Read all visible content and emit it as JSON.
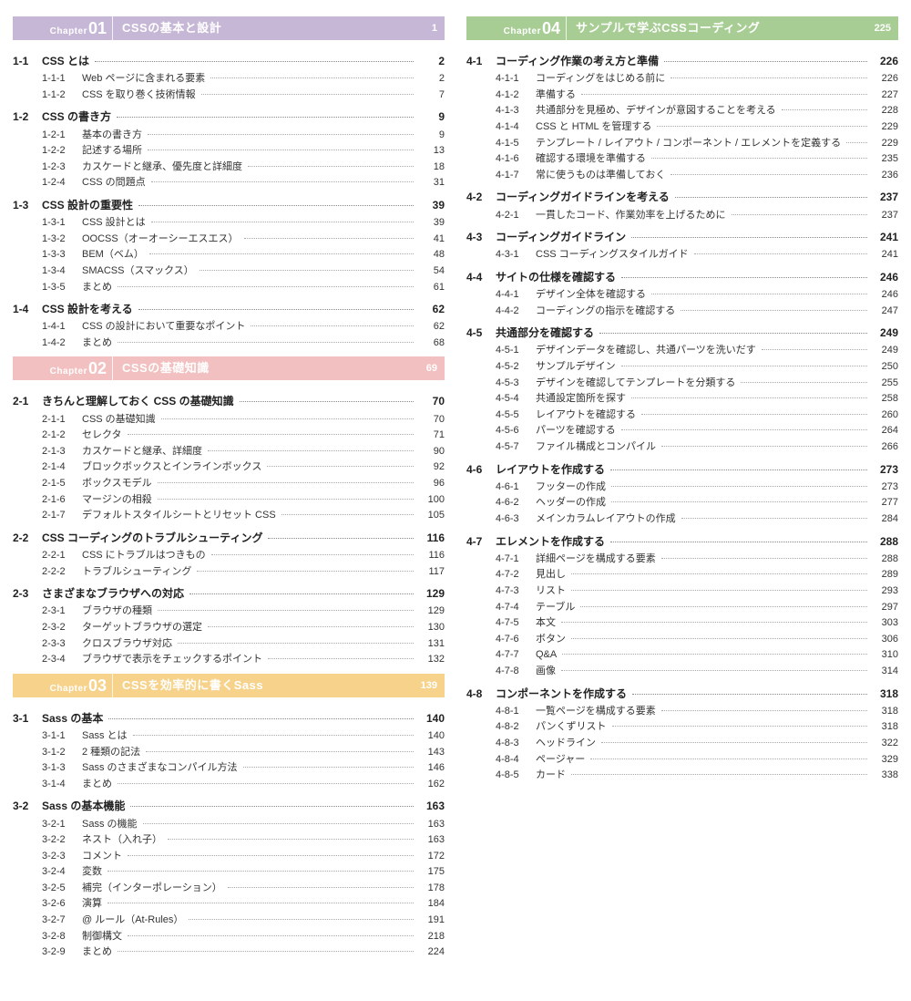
{
  "chapterLabel": "Chapter",
  "chapters": [
    {
      "num": "01",
      "title": "CSSの基本と設計",
      "page": 1,
      "color": "#c6b7d6",
      "sections": [
        {
          "num": "1-1",
          "title": "CSS とは",
          "page": 2,
          "subs": [
            {
              "num": "1-1-1",
              "title": "Web ページに含まれる要素",
              "page": 2
            },
            {
              "num": "1-1-2",
              "title": "CSS を取り巻く技術情報",
              "page": 7
            }
          ]
        },
        {
          "num": "1-2",
          "title": "CSS の書き方",
          "page": 9,
          "subs": [
            {
              "num": "1-2-1",
              "title": "基本の書き方",
              "page": 9
            },
            {
              "num": "1-2-2",
              "title": "記述する場所",
              "page": 13
            },
            {
              "num": "1-2-3",
              "title": "カスケードと継承、優先度と詳細度",
              "page": 18
            },
            {
              "num": "1-2-4",
              "title": "CSS の問題点",
              "page": 31
            }
          ]
        },
        {
          "num": "1-3",
          "title": "CSS 設計の重要性",
          "page": 39,
          "subs": [
            {
              "num": "1-3-1",
              "title": "CSS 設計とは",
              "page": 39
            },
            {
              "num": "1-3-2",
              "title": "OOCSS（オーオーシーエスエス）",
              "page": 41
            },
            {
              "num": "1-3-3",
              "title": "BEM（ベム）",
              "page": 48
            },
            {
              "num": "1-3-4",
              "title": "SMACSS（スマックス）",
              "page": 54
            },
            {
              "num": "1-3-5",
              "title": "まとめ",
              "page": 61
            }
          ]
        },
        {
          "num": "1-4",
          "title": "CSS 設計を考える",
          "page": 62,
          "subs": [
            {
              "num": "1-4-1",
              "title": "CSS の設計において重要なポイント",
              "page": 62
            },
            {
              "num": "1-4-2",
              "title": "まとめ",
              "page": 68
            }
          ]
        }
      ]
    },
    {
      "num": "02",
      "title": "CSSの基礎知識",
      "page": 69,
      "color": "#f2c0c0",
      "sections": [
        {
          "num": "2-1",
          "title": "きちんと理解しておく CSS の基礎知識",
          "page": 70,
          "subs": [
            {
              "num": "2-1-1",
              "title": "CSS の基礎知識",
              "page": 70
            },
            {
              "num": "2-1-2",
              "title": "セレクタ",
              "page": 71
            },
            {
              "num": "2-1-3",
              "title": "カスケードと継承、詳細度",
              "page": 90
            },
            {
              "num": "2-1-4",
              "title": "ブロックボックスとインラインボックス",
              "page": 92
            },
            {
              "num": "2-1-5",
              "title": "ボックスモデル",
              "page": 96
            },
            {
              "num": "2-1-6",
              "title": "マージンの相殺",
              "page": 100
            },
            {
              "num": "2-1-7",
              "title": "デフォルトスタイルシートとリセット CSS",
              "page": 105
            }
          ]
        },
        {
          "num": "2-2",
          "title": "CSS コーディングのトラブルシューティング",
          "page": 116,
          "subs": [
            {
              "num": "2-2-1",
              "title": "CSS にトラブルはつきもの",
              "page": 116
            },
            {
              "num": "2-2-2",
              "title": "トラブルシューティング",
              "page": 117
            }
          ]
        },
        {
          "num": "2-3",
          "title": "さまざまなブラウザへの対応",
          "page": 129,
          "subs": [
            {
              "num": "2-3-1",
              "title": "ブラウザの種類",
              "page": 129
            },
            {
              "num": "2-3-2",
              "title": "ターゲットブラウザの選定",
              "page": 130
            },
            {
              "num": "2-3-3",
              "title": "クロスブラウザ対応",
              "page": 131
            },
            {
              "num": "2-3-4",
              "title": "ブラウザで表示をチェックするポイント",
              "page": 132
            }
          ]
        }
      ]
    },
    {
      "num": "03",
      "title": "CSSを効率的に書くSass",
      "page": 139,
      "color": "#f6d28b",
      "sections": [
        {
          "num": "3-1",
          "title": "Sass の基本",
          "page": 140,
          "subs": [
            {
              "num": "3-1-1",
              "title": "Sass とは",
              "page": 140
            },
            {
              "num": "3-1-2",
              "title": "2 種類の記法",
              "page": 143
            },
            {
              "num": "3-1-3",
              "title": "Sass のさまざまなコンパイル方法",
              "page": 146
            },
            {
              "num": "3-1-4",
              "title": "まとめ",
              "page": 162
            }
          ]
        },
        {
          "num": "3-2",
          "title": "Sass の基本機能",
          "page": 163,
          "subs": [
            {
              "num": "3-2-1",
              "title": "Sass の機能",
              "page": 163
            },
            {
              "num": "3-2-2",
              "title": "ネスト（入れ子）",
              "page": 163
            },
            {
              "num": "3-2-3",
              "title": "コメント",
              "page": 172
            },
            {
              "num": "3-2-4",
              "title": "変数",
              "page": 175
            },
            {
              "num": "3-2-5",
              "title": "補完（インターポレーション）",
              "page": 178
            },
            {
              "num": "3-2-6",
              "title": "演算",
              "page": 184
            },
            {
              "num": "3-2-7",
              "title": "@ ルール（At-Rules）",
              "page": 191
            },
            {
              "num": "3-2-8",
              "title": "制御構文",
              "page": 218
            },
            {
              "num": "3-2-9",
              "title": "まとめ",
              "page": 224
            }
          ]
        }
      ]
    },
    {
      "num": "04",
      "title": "サンプルで学ぶCSSコーディング",
      "page": 225,
      "color": "#a7cd94",
      "sections": [
        {
          "num": "4-1",
          "title": "コーディング作業の考え方と準備",
          "page": 226,
          "subs": [
            {
              "num": "4-1-1",
              "title": "コーディングをはじめる前に",
              "page": 226
            },
            {
              "num": "4-1-2",
              "title": "準備する",
              "page": 227
            },
            {
              "num": "4-1-3",
              "title": "共通部分を見極め、デザインが意図することを考える",
              "page": 228
            },
            {
              "num": "4-1-4",
              "title": "CSS と HTML を管理する",
              "page": 229
            },
            {
              "num": "4-1-5",
              "title": "テンプレート / レイアウト / コンポーネント / エレメントを定義する",
              "page": 229
            },
            {
              "num": "4-1-6",
              "title": "確認する環境を準備する",
              "page": 235
            },
            {
              "num": "4-1-7",
              "title": "常に使うものは準備しておく",
              "page": 236
            }
          ]
        },
        {
          "num": "4-2",
          "title": "コーディングガイドラインを考える",
          "page": 237,
          "subs": [
            {
              "num": "4-2-1",
              "title": "一貫したコード、作業効率を上げるために",
              "page": 237
            }
          ]
        },
        {
          "num": "4-3",
          "title": "コーディングガイドライン",
          "page": 241,
          "subs": [
            {
              "num": "4-3-1",
              "title": "CSS コーディングスタイルガイド",
              "page": 241
            }
          ]
        },
        {
          "num": "4-4",
          "title": "サイトの仕様を確認する",
          "page": 246,
          "subs": [
            {
              "num": "4-4-1",
              "title": "デザイン全体を確認する",
              "page": 246
            },
            {
              "num": "4-4-2",
              "title": "コーディングの指示を確認する",
              "page": 247
            }
          ]
        },
        {
          "num": "4-5",
          "title": "共通部分を確認する",
          "page": 249,
          "subs": [
            {
              "num": "4-5-1",
              "title": "デザインデータを確認し、共通パーツを洗いだす",
              "page": 249
            },
            {
              "num": "4-5-2",
              "title": "サンプルデザイン",
              "page": 250
            },
            {
              "num": "4-5-3",
              "title": "デザインを確認してテンプレートを分類する",
              "page": 255
            },
            {
              "num": "4-5-4",
              "title": "共通設定箇所を探す",
              "page": 258
            },
            {
              "num": "4-5-5",
              "title": "レイアウトを確認する",
              "page": 260
            },
            {
              "num": "4-5-6",
              "title": "パーツを確認する",
              "page": 264
            },
            {
              "num": "4-5-7",
              "title": "ファイル構成とコンパイル",
              "page": 266
            }
          ]
        },
        {
          "num": "4-6",
          "title": "レイアウトを作成する",
          "page": 273,
          "subs": [
            {
              "num": "4-6-1",
              "title": "フッターの作成",
              "page": 273
            },
            {
              "num": "4-6-2",
              "title": "ヘッダーの作成",
              "page": 277
            },
            {
              "num": "4-6-3",
              "title": "メインカラムレイアウトの作成",
              "page": 284
            }
          ]
        },
        {
          "num": "4-7",
          "title": "エレメントを作成する",
          "page": 288,
          "subs": [
            {
              "num": "4-7-1",
              "title": "詳細ページを構成する要素",
              "page": 288
            },
            {
              "num": "4-7-2",
              "title": "見出し",
              "page": 289
            },
            {
              "num": "4-7-3",
              "title": "リスト",
              "page": 293
            },
            {
              "num": "4-7-4",
              "title": "テーブル",
              "page": 297
            },
            {
              "num": "4-7-5",
              "title": "本文",
              "page": 303
            },
            {
              "num": "4-7-6",
              "title": "ボタン",
              "page": 306
            },
            {
              "num": "4-7-7",
              "title": "Q&A",
              "page": 310
            },
            {
              "num": "4-7-8",
              "title": "画像",
              "page": 314
            }
          ]
        },
        {
          "num": "4-8",
          "title": "コンポーネントを作成する",
          "page": 318,
          "subs": [
            {
              "num": "4-8-1",
              "title": "一覧ページを構成する要素",
              "page": 318
            },
            {
              "num": "4-8-2",
              "title": "パンくずリスト",
              "page": 318
            },
            {
              "num": "4-8-3",
              "title": "ヘッドライン",
              "page": 322
            },
            {
              "num": "4-8-4",
              "title": "ページャー",
              "page": 329
            },
            {
              "num": "4-8-5",
              "title": "カード",
              "page": 338
            }
          ]
        }
      ]
    }
  ]
}
